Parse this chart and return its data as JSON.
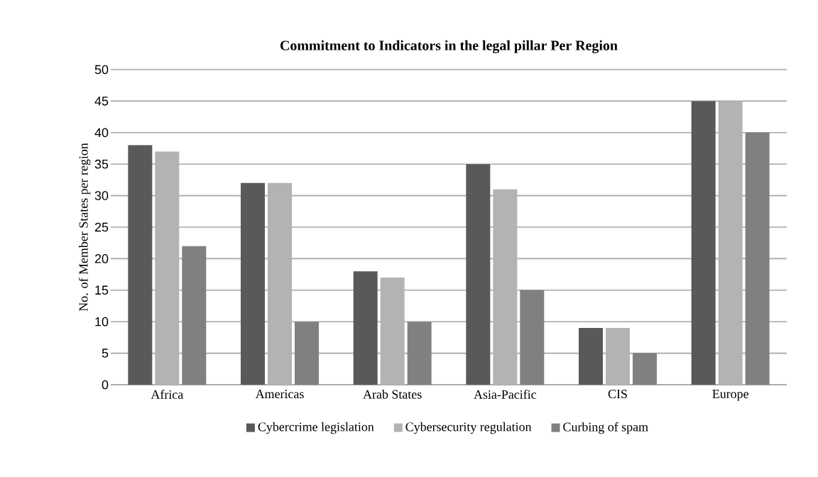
{
  "chart_data": {
    "type": "bar",
    "title": "Commitment to Indicators in the legal pillar Per Region",
    "ylabel": "No. of Member States per region",
    "categories": [
      "Africa",
      "Americas",
      "Arab States",
      "Asia-Pacific",
      "CIS",
      "Europe"
    ],
    "series": [
      {
        "name": "Cybercrime legislation",
        "color": "#595959",
        "values": [
          38,
          32,
          18,
          35,
          9,
          45
        ]
      },
      {
        "name": "Cybersecurity regulation",
        "color": "#b3b3b3",
        "values": [
          37,
          32,
          17,
          31,
          9,
          45
        ]
      },
      {
        "name": "Curbing of spam",
        "color": "#808080",
        "values": [
          22,
          10,
          10,
          15,
          5,
          40
        ]
      }
    ],
    "ylim": [
      0,
      50
    ],
    "yticks": [
      0,
      5,
      10,
      15,
      20,
      25,
      30,
      35,
      40,
      45,
      50
    ],
    "grid": "y",
    "legend": "bottom"
  }
}
